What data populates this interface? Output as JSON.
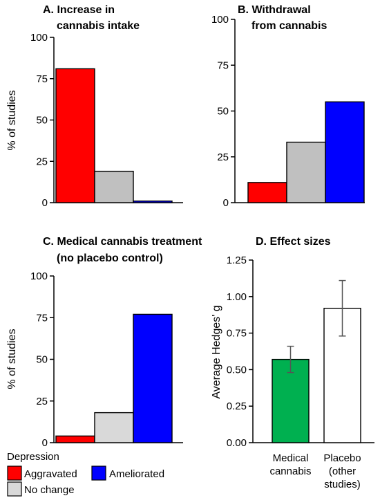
{
  "chart_data": [
    {
      "type": "bar",
      "title": [
        "A. Increase in",
        "cannabis intake"
      ],
      "ylabel": "% of studies",
      "ylim": [
        0,
        100
      ],
      "yticks": [
        "0",
        "25",
        "50",
        "75",
        "100"
      ],
      "categories": [
        "Aggravated",
        "No change",
        "Ameliorated"
      ],
      "values": [
        81,
        19,
        1
      ],
      "colors": [
        "#ff0000",
        "#c0c0c0",
        "#0000ff"
      ]
    },
    {
      "type": "bar",
      "title": [
        "B. Withdrawal",
        "from cannabis"
      ],
      "ylabel": "",
      "ylim": [
        0,
        100
      ],
      "yticks": [
        "0",
        "25",
        "50",
        "75",
        "100"
      ],
      "categories": [
        "Aggravated",
        "No change",
        "Ameliorated"
      ],
      "values": [
        11,
        33,
        55
      ],
      "colors": [
        "#ff0000",
        "#c0c0c0",
        "#0000ff"
      ]
    },
    {
      "type": "bar",
      "title": [
        "C. Medical cannabis treatment",
        "(no placebo control)"
      ],
      "ylabel": "% of studies",
      "ylim": [
        0,
        100
      ],
      "yticks": [
        "0",
        "25",
        "50",
        "75",
        "100"
      ],
      "categories": [
        "Aggravated",
        "No change",
        "Ameliorated"
      ],
      "values": [
        4,
        18,
        77
      ],
      "colors": [
        "#ff0000",
        "#d9d9d9",
        "#0000ff"
      ]
    },
    {
      "type": "bar",
      "title": [
        "D. Effect sizes"
      ],
      "ylabel": "Average Hedges' g",
      "ylim": [
        0,
        1.25
      ],
      "yticks": [
        "0.00",
        "0.25",
        "0.50",
        "0.75",
        "1.00",
        "1.25"
      ],
      "categories": [
        [
          "Medical",
          "cannabis"
        ],
        [
          "Placebo",
          "(other",
          "studies)"
        ]
      ],
      "values": [
        0.57,
        0.92
      ],
      "error_low": [
        0.48,
        0.73
      ],
      "error_high": [
        0.66,
        1.11
      ],
      "colors": [
        "#00b050",
        "#ffffff"
      ]
    }
  ],
  "legend": {
    "title": "Depression",
    "items": [
      {
        "label": "Aggravated",
        "color": "#ff0000"
      },
      {
        "label": "Ameliorated",
        "color": "#0000ff"
      },
      {
        "label": "No change",
        "color": "#d9d9d9"
      }
    ]
  }
}
